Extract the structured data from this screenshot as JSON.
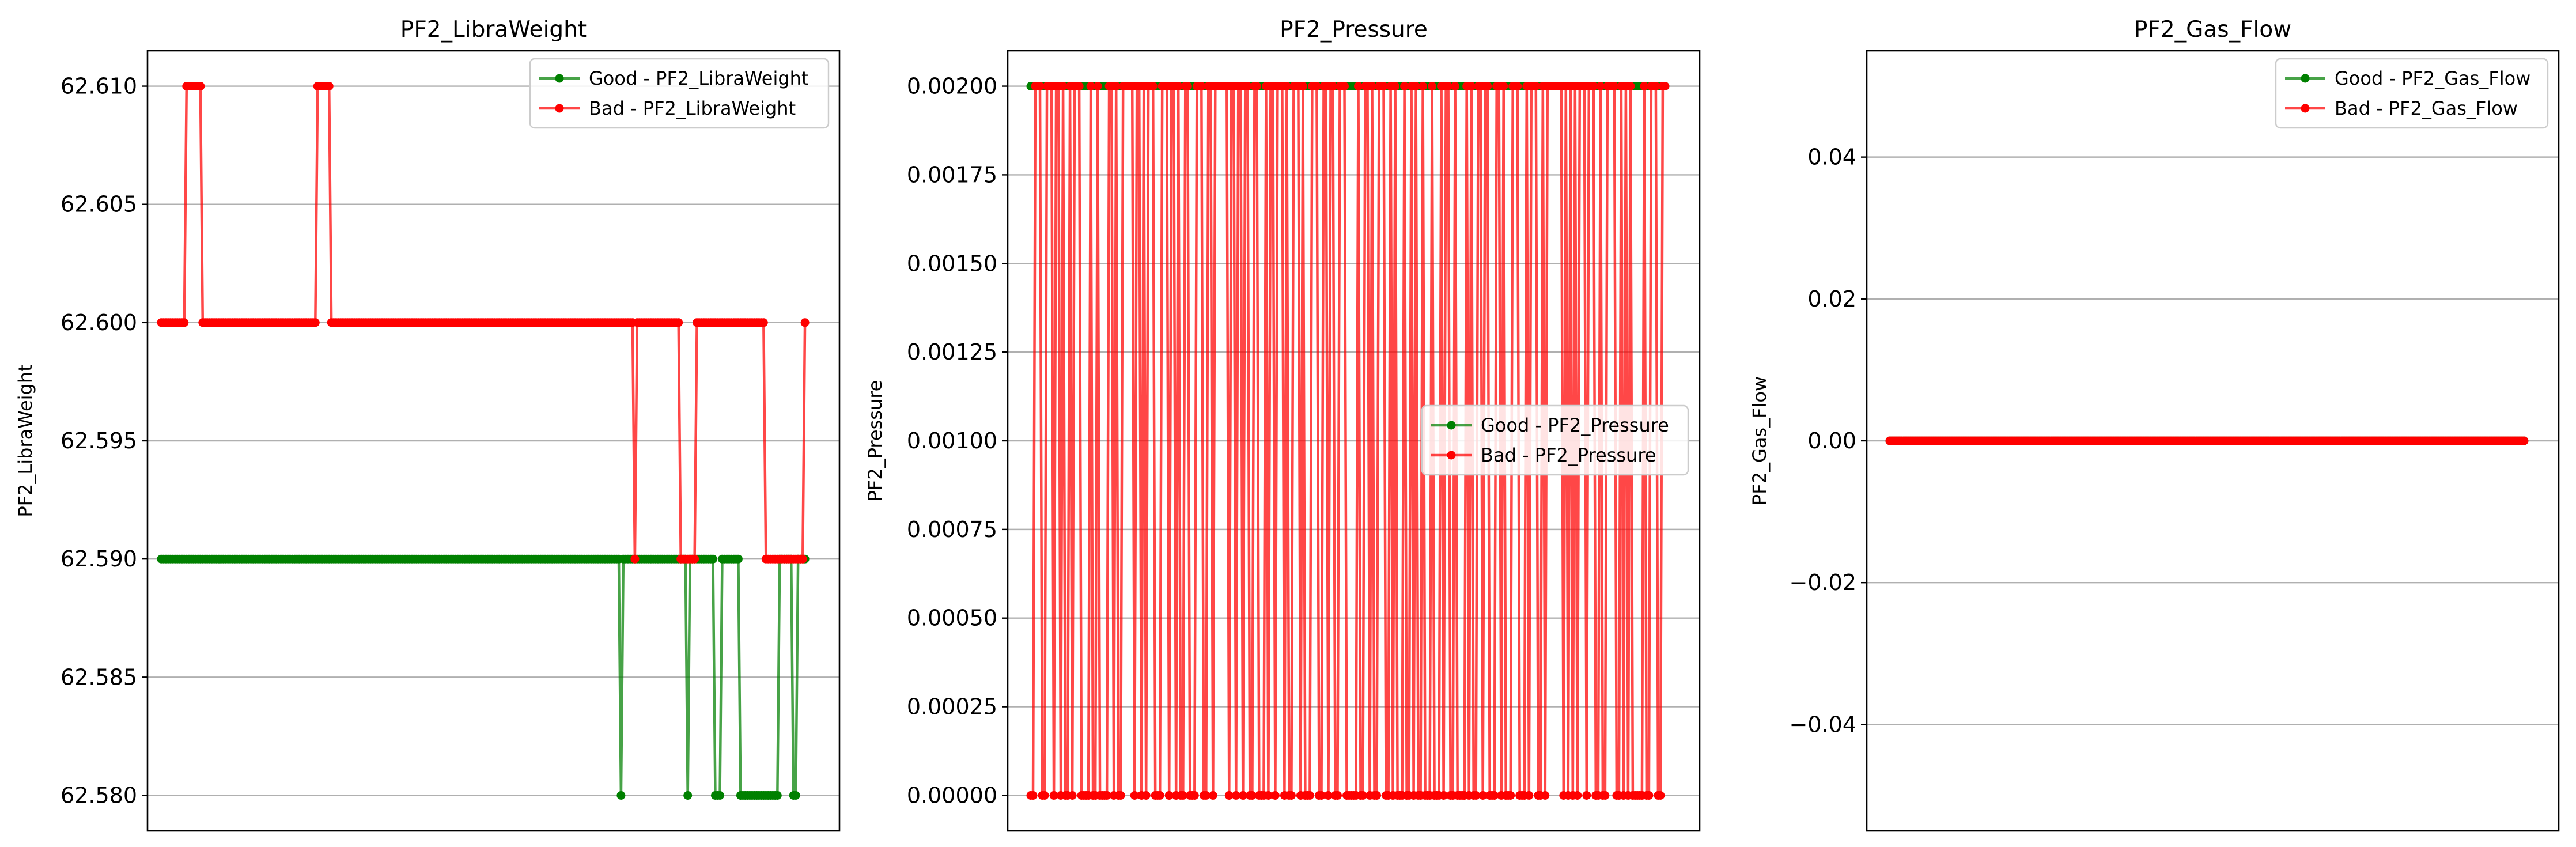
{
  "colors": {
    "good": "#008000",
    "bad": "#ff0000",
    "grid": "#b0b0b0",
    "axes": "#000000",
    "background": "#ffffff"
  },
  "chart_data": [
    {
      "type": "line",
      "title": "PF2_LibraWeight",
      "xlabel": "",
      "ylabel": "PF2_LibraWeight",
      "ylim": [
        62.5785,
        62.6115
      ],
      "xlim": [
        -6,
        295
      ],
      "x_ticks_visible": false,
      "yticks": [
        62.58,
        62.585,
        62.59,
        62.595,
        62.6,
        62.605,
        62.61
      ],
      "ytick_labels": [
        "62.580",
        "62.585",
        "62.590",
        "62.595",
        "62.600",
        "62.605",
        "62.610"
      ],
      "grid": "y",
      "legend": {
        "placement": "upper right"
      },
      "series": [
        {
          "name": "Good - PF2_LibraWeight",
          "color": "#008000",
          "segments": [
            {
              "x_start": 0,
              "x_end": 280,
              "y": 62.59
            },
            {
              "x": 200,
              "y": 62.58
            },
            {
              "x": 229,
              "y": 62.58
            },
            {
              "x_start": 241,
              "x_end": 243,
              "y": 62.58
            },
            {
              "x_start": 252,
              "x_end": 268,
              "y": 62.58
            },
            {
              "x_start": 275,
              "x_end": 276,
              "y": 62.58
            }
          ]
        },
        {
          "name": "Bad - PF2_LibraWeight",
          "color": "#ff0000",
          "segments": [
            {
              "x_start": 0,
              "x_end": 280,
              "y": 62.6
            },
            {
              "x_start": 11,
              "x_end": 17,
              "y": 62.61
            },
            {
              "x_start": 68,
              "x_end": 73,
              "y": 62.61
            },
            {
              "x": 206,
              "y": 62.59
            },
            {
              "x_start": 226,
              "x_end": 232,
              "y": 62.59
            },
            {
              "x_start": 263,
              "x_end": 279,
              "y": 62.59
            }
          ]
        }
      ]
    },
    {
      "type": "line",
      "title": "PF2_Pressure",
      "xlabel": "",
      "ylabel": "PF2_Pressure",
      "ylim": [
        -0.0001,
        0.0021
      ],
      "xlim": [
        -10,
        290
      ],
      "x_ticks_visible": false,
      "yticks": [
        0,
        0.00025,
        0.0005,
        0.00075,
        0.001,
        0.00125,
        0.0015,
        0.00175,
        0.002
      ],
      "ytick_labels": [
        "0.00000",
        "0.00025",
        "0.00050",
        "0.00075",
        "0.00100",
        "0.00125",
        "0.00150",
        "0.00175",
        "0.00200"
      ],
      "grid": "y",
      "legend": {
        "placement": "center right"
      },
      "series": [
        {
          "name": "Good - PF2_Pressure",
          "color": "#008000",
          "segments": [
            {
              "x_start": 0,
              "x_end": 275,
              "y": 0.002
            }
          ]
        },
        {
          "name": "Bad - PF2_Pressure",
          "color": "#ff0000",
          "pattern": "alternating between 0.00000 and 0.00200 throughout the full x range",
          "low": 0.0,
          "high": 0.002,
          "x_start": 0,
          "x_end": 275
        }
      ]
    },
    {
      "type": "line",
      "title": "PF2_Gas_Flow",
      "xlabel": "",
      "ylabel": "PF2_Gas_Flow",
      "ylim": [
        -0.055,
        0.055
      ],
      "xlim": [
        -10,
        290
      ],
      "x_ticks_visible": false,
      "yticks": [
        -0.04,
        -0.02,
        0.0,
        0.02,
        0.04
      ],
      "ytick_labels": [
        "−0.04",
        "−0.02",
        "0.00",
        "0.02",
        "0.04"
      ],
      "grid": "y",
      "legend": {
        "placement": "upper right"
      },
      "series": [
        {
          "name": "Good - PF2_Gas_Flow",
          "color": "#008000",
          "segments": [
            {
              "x_start": 0,
              "x_end": 275,
              "y": 0.0
            }
          ]
        },
        {
          "name": "Bad - PF2_Gas_Flow",
          "color": "#ff0000",
          "segments": [
            {
              "x_start": 0,
              "x_end": 275,
              "y": 0.0
            }
          ]
        }
      ]
    }
  ]
}
